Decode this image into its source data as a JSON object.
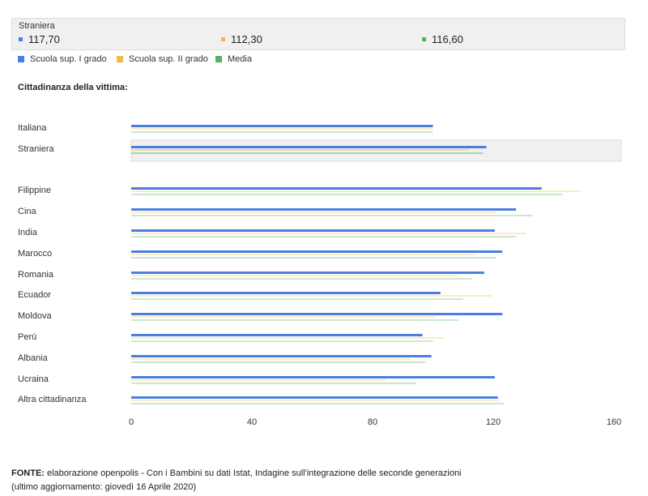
{
  "tooltip": {
    "title": "Straniera",
    "values": [
      {
        "label": "117,70",
        "color": "#4a7fe0"
      },
      {
        "label": "112,30",
        "color": "#f2b84b"
      },
      {
        "label": "116,60",
        "color": "#5aae61"
      }
    ]
  },
  "section_label": "Cittadinanza della vittima:",
  "footer": {
    "source_label": "FONTE:",
    "source_text": "elaborazione openpolis - Con i Bambini su dati Istat, Indagine sull'integrazione delle seconde generazioni",
    "updated": "(ultimo aggiornamento: giovedì 16 Aprile 2020)"
  },
  "chart_data": {
    "type": "bar",
    "orientation": "horizontal",
    "title": "",
    "xlabel": "",
    "ylabel": "",
    "xlim": [
      0,
      160
    ],
    "x_ticks": [
      0,
      40,
      80,
      120,
      160
    ],
    "grid": false,
    "legend_position": "top-left",
    "highlighted_category": "Straniera",
    "categories": [
      "Italiana",
      "Straniera",
      "Filippine",
      "Cina",
      "India",
      "Marocco",
      "Romania",
      "Ecuador",
      "Moldova",
      "Perù",
      "Albania",
      "Ucraina",
      "Altra cittadinanza"
    ],
    "series": [
      {
        "name": "Scuola sup. I grado",
        "color": "#4a7fe0",
        "values": [
          100,
          117.7,
          136,
          127.5,
          120.5,
          123,
          117,
          102.5,
          123,
          96.5,
          99.5,
          120.5,
          121.5
        ]
      },
      {
        "name": "Scuola sup. II grado",
        "color": "#f2b84b",
        "values": [
          100,
          112.3,
          149,
          121,
          131,
          114,
          108,
          119.5,
          101,
          104,
          92.5,
          84.5,
          122
        ]
      },
      {
        "name": "Media",
        "color": "#5aae61",
        "values": [
          100,
          116.6,
          143,
          133,
          127.5,
          121,
          113,
          110,
          108.5,
          100,
          97.5,
          94.5,
          123.5
        ]
      }
    ]
  }
}
